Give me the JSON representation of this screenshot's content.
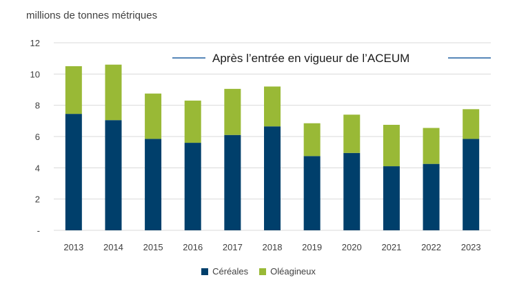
{
  "chart_data": {
    "type": "bar",
    "stacked": true,
    "ylabel": "millions de tonnes métriques",
    "ylim": [
      0,
      12
    ],
    "yticks": [
      0,
      2,
      4,
      6,
      8,
      10,
      12
    ],
    "ytick_labels": [
      "-",
      "2",
      "4",
      "6",
      "8",
      "10",
      "12"
    ],
    "categories": [
      "2013",
      "2014",
      "2015",
      "2016",
      "2017",
      "2018",
      "2019",
      "2020",
      "2021",
      "2022",
      "2023"
    ],
    "series": [
      {
        "name": "Céréales",
        "color": "#003f6b",
        "values": [
          7.45,
          7.05,
          5.85,
          5.6,
          6.1,
          6.65,
          4.75,
          4.95,
          4.1,
          4.25,
          5.85
        ]
      },
      {
        "name": "Oléagineux",
        "color": "#99b936",
        "values": [
          3.05,
          3.55,
          2.9,
          2.7,
          2.95,
          2.55,
          2.1,
          2.45,
          2.65,
          2.3,
          1.9
        ]
      }
    ],
    "annotation": "Après l’entrée en vigueur de l’ACEUM",
    "annotation_line_color": "#1f5fa0",
    "grid_color": "#d9d9d9",
    "legend_position": "bottom"
  }
}
